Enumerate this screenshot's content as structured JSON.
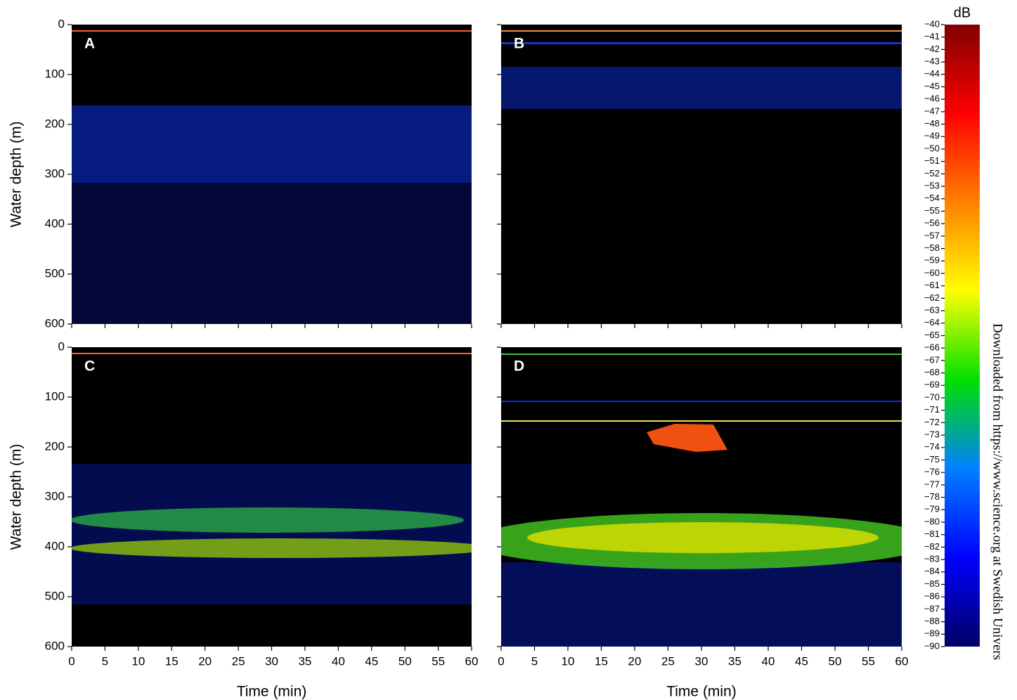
{
  "chart_data": [
    {
      "type": "heatmap",
      "label": "A",
      "ylabel": "Water depth (m)",
      "ylim": [
        0,
        600
      ],
      "yticks": [
        0,
        100,
        200,
        300,
        400,
        500,
        600
      ],
      "show_ytick_labels": true,
      "xlim": [
        0,
        60
      ],
      "xticks": [
        0,
        5,
        10,
        15,
        20,
        25,
        30,
        35,
        40,
        45,
        50,
        55,
        60
      ],
      "show_xtick_labels": false
    },
    {
      "type": "heatmap",
      "label": "B",
      "ylim": [
        0,
        600
      ],
      "yticks": [
        0,
        100,
        200,
        300,
        400,
        500,
        600
      ],
      "show_ytick_labels": false,
      "xlim": [
        0,
        60
      ],
      "xticks": [
        0,
        5,
        10,
        15,
        20,
        25,
        30,
        35,
        40,
        45,
        50,
        55,
        60
      ],
      "show_xtick_labels": false
    },
    {
      "type": "heatmap",
      "label": "C",
      "ylabel": "Water depth (m)",
      "xlabel": "Time (min)",
      "ylim": [
        0,
        600
      ],
      "yticks": [
        0,
        100,
        200,
        300,
        400,
        500,
        600
      ],
      "show_ytick_labels": true,
      "xlim": [
        0,
        60
      ],
      "xticks": [
        0,
        5,
        10,
        15,
        20,
        25,
        30,
        35,
        40,
        45,
        50,
        55,
        60
      ],
      "show_xtick_labels": true
    },
    {
      "type": "heatmap",
      "label": "D",
      "xlabel": "Time (min)",
      "ylim": [
        0,
        600
      ],
      "yticks": [
        0,
        100,
        200,
        300,
        400,
        500,
        600
      ],
      "show_ytick_labels": false,
      "xlim": [
        0,
        60
      ],
      "xticks": [
        0,
        5,
        10,
        15,
        20,
        25,
        30,
        35,
        40,
        45,
        50,
        55,
        60
      ],
      "show_xtick_labels": true
    },
    {
      "type": "colorbar",
      "title": "dB",
      "ylim": [
        -90,
        -40
      ],
      "colormap": [
        "#000066",
        "#0000ff",
        "#0080ff",
        "#00e000",
        "#ffff00",
        "#ff8000",
        "#ff0000",
        "#800000"
      ],
      "yticks": [
        {
          "value": -40,
          "label": "−40"
        },
        {
          "value": -41,
          "label": "−41"
        },
        {
          "value": -42,
          "label": "−42"
        },
        {
          "value": -43,
          "label": "−43"
        },
        {
          "value": -44,
          "label": "−44"
        },
        {
          "value": -45,
          "label": "−45"
        },
        {
          "value": -46,
          "label": "−46"
        },
        {
          "value": -47,
          "label": "−47"
        },
        {
          "value": -48,
          "label": "−48"
        },
        {
          "value": -49,
          "label": "−49"
        },
        {
          "value": -50,
          "label": "−50"
        },
        {
          "value": -51,
          "label": "−51"
        },
        {
          "value": -52,
          "label": "−52"
        },
        {
          "value": -53,
          "label": "−53"
        },
        {
          "value": -54,
          "label": "−54"
        },
        {
          "value": -55,
          "label": "−55"
        },
        {
          "value": -56,
          "label": "−56"
        },
        {
          "value": -57,
          "label": "−57"
        },
        {
          "value": -58,
          "label": "−58"
        },
        {
          "value": -59,
          "label": "−59"
        },
        {
          "value": -60,
          "label": "−60"
        },
        {
          "value": -61,
          "label": "−61"
        },
        {
          "value": -62,
          "label": "−62"
        },
        {
          "value": -63,
          "label": "−63"
        },
        {
          "value": -64,
          "label": "−64"
        },
        {
          "value": -65,
          "label": "−65"
        },
        {
          "value": -66,
          "label": "−66"
        },
        {
          "value": -67,
          "label": "−67"
        },
        {
          "value": -68,
          "label": "−68"
        },
        {
          "value": -69,
          "label": "−69"
        },
        {
          "value": -70,
          "label": "−70"
        },
        {
          "value": -71,
          "label": "−71"
        },
        {
          "value": -72,
          "label": "−72"
        },
        {
          "value": -73,
          "label": "−73"
        },
        {
          "value": -74,
          "label": "−74"
        },
        {
          "value": -75,
          "label": "−75"
        },
        {
          "value": -76,
          "label": "−76"
        },
        {
          "value": -77,
          "label": "−77"
        },
        {
          "value": -78,
          "label": "−78"
        },
        {
          "value": -79,
          "label": "−79"
        },
        {
          "value": -80,
          "label": "−80"
        },
        {
          "value": -81,
          "label": "−81"
        },
        {
          "value": -82,
          "label": "−82"
        },
        {
          "value": -83,
          "label": "−83"
        },
        {
          "value": -84,
          "label": "−84"
        },
        {
          "value": -85,
          "label": "−85"
        },
        {
          "value": -86,
          "label": "−86"
        },
        {
          "value": -87,
          "label": "−87"
        },
        {
          "value": -88,
          "label": "−88"
        },
        {
          "value": -89,
          "label": "−89"
        },
        {
          "value": -90,
          "label": "−90"
        }
      ]
    }
  ],
  "watermark": "Downloaded from https://www.science.org at Swedish Univers"
}
